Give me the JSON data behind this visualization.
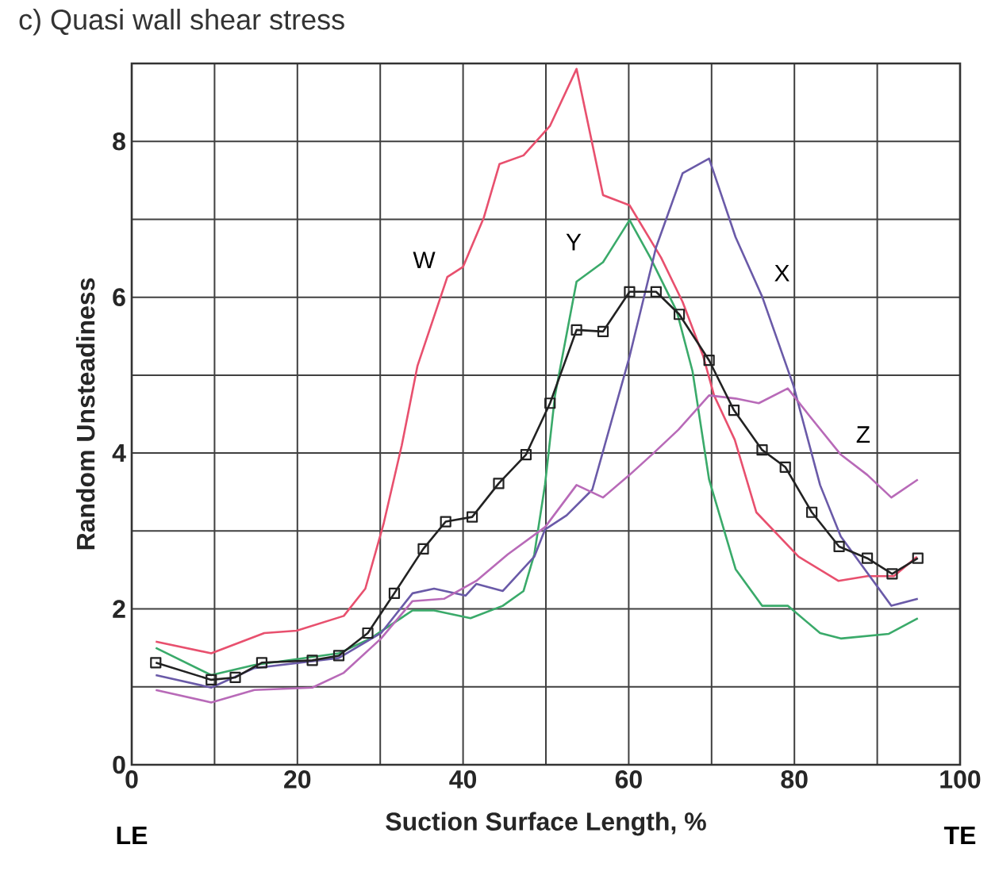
{
  "chart_data": {
    "type": "line",
    "title": "c) Quasi wall shear stress",
    "xlabel": "Suction Surface Length, %",
    "ylabel": "Random Unsteadiness",
    "annotations": [
      "LE",
      "TE"
    ],
    "xlim": [
      0,
      100
    ],
    "xticks": [
      0,
      20,
      40,
      60,
      80,
      100
    ],
    "ylim": [
      0,
      9
    ],
    "yticks": [
      0,
      2,
      4,
      6,
      8
    ],
    "grid": true,
    "series": [
      {
        "name": "W",
        "color": "#e8506e",
        "marker": "none",
        "x": [
          2.9,
          9.6,
          16.0,
          19.9,
          25.6,
          28.2,
          30.4,
          32.6,
          34.5,
          38.1,
          40.0,
          42.5,
          44.4,
          47.3,
          50.5,
          53.7,
          56.9,
          60.1,
          63.9,
          66.5,
          69.0,
          70.3,
          72.8,
          75.4,
          80.5,
          85.3,
          88.8,
          92.0,
          94.8
        ],
        "values": [
          1.58,
          1.43,
          1.69,
          1.72,
          1.91,
          2.26,
          3.09,
          4.1,
          5.12,
          6.26,
          6.39,
          7.02,
          7.71,
          7.82,
          8.2,
          8.93,
          7.31,
          7.18,
          6.51,
          5.94,
          5.24,
          4.74,
          4.17,
          3.24,
          2.67,
          2.36,
          2.42,
          2.42,
          2.67
        ]
      },
      {
        "name": "Y",
        "color": "#3aaa6a",
        "marker": "none",
        "x": [
          2.9,
          9.6,
          14.8,
          25.0,
          28.8,
          33.9,
          36.5,
          40.9,
          44.8,
          47.3,
          48.6,
          49.9,
          51.1,
          53.7,
          56.9,
          60.1,
          62.6,
          65.8,
          67.7,
          69.7,
          72.9,
          76.1,
          79.2,
          83.1,
          85.6,
          91.4,
          94.9
        ],
        "values": [
          1.5,
          1.15,
          1.28,
          1.43,
          1.62,
          1.98,
          1.98,
          1.88,
          2.04,
          2.23,
          2.7,
          3.6,
          4.74,
          6.2,
          6.45,
          6.99,
          6.51,
          5.82,
          5.05,
          3.66,
          2.51,
          2.04,
          2.04,
          1.69,
          1.62,
          1.68,
          1.88
        ]
      },
      {
        "name": "X",
        "color": "#6a5aa8",
        "marker": "none",
        "x": [
          2.9,
          9.6,
          14.8,
          25.0,
          30.1,
          33.9,
          36.5,
          40.3,
          41.6,
          44.8,
          48.6,
          49.9,
          52.5,
          55.6,
          60.1,
          63.3,
          66.5,
          69.7,
          72.9,
          76.1,
          79.9,
          83.1,
          85.6,
          91.7,
          94.9
        ],
        "values": [
          1.15,
          0.99,
          1.24,
          1.37,
          1.69,
          2.2,
          2.26,
          2.17,
          2.32,
          2.23,
          2.67,
          3.02,
          3.2,
          3.53,
          5.24,
          6.64,
          7.59,
          7.78,
          6.77,
          6.01,
          4.86,
          3.59,
          2.93,
          2.04,
          2.13
        ]
      },
      {
        "name": "Z",
        "color": "#b86ab8",
        "marker": "none",
        "x": [
          2.9,
          9.6,
          14.8,
          21.8,
          25.6,
          30.1,
          33.9,
          37.7,
          41.6,
          45.4,
          49.9,
          53.7,
          56.9,
          60.1,
          63.0,
          66.0,
          69.7,
          72.9,
          75.7,
          79.2,
          81.8,
          85.6,
          88.8,
          91.7,
          94.9
        ],
        "values": [
          0.96,
          0.8,
          0.96,
          0.99,
          1.18,
          1.62,
          2.1,
          2.13,
          2.36,
          2.7,
          3.05,
          3.59,
          3.43,
          3.72,
          4.0,
          4.3,
          4.74,
          4.7,
          4.64,
          4.83,
          4.48,
          3.98,
          3.72,
          3.43,
          3.66
        ]
      },
      {
        "color": "#222222",
        "marker": "square",
        "x": [
          2.9,
          9.6,
          12.5,
          15.7,
          21.8,
          25.0,
          28.5,
          31.7,
          35.2,
          37.9,
          41.1,
          44.3,
          47.6,
          50.5,
          53.7,
          56.9,
          60.1,
          63.3,
          66.1,
          69.7,
          72.7,
          76.1,
          78.9,
          82.1,
          85.4,
          88.8,
          91.8,
          94.9
        ],
        "values": [
          1.31,
          1.09,
          1.12,
          1.31,
          1.34,
          1.4,
          1.69,
          2.2,
          2.77,
          3.12,
          3.18,
          3.61,
          3.98,
          4.64,
          5.58,
          5.56,
          6.07,
          6.07,
          5.78,
          5.19,
          4.55,
          4.04,
          3.82,
          3.24,
          2.8,
          2.65,
          2.45,
          2.65
        ]
      }
    ]
  }
}
